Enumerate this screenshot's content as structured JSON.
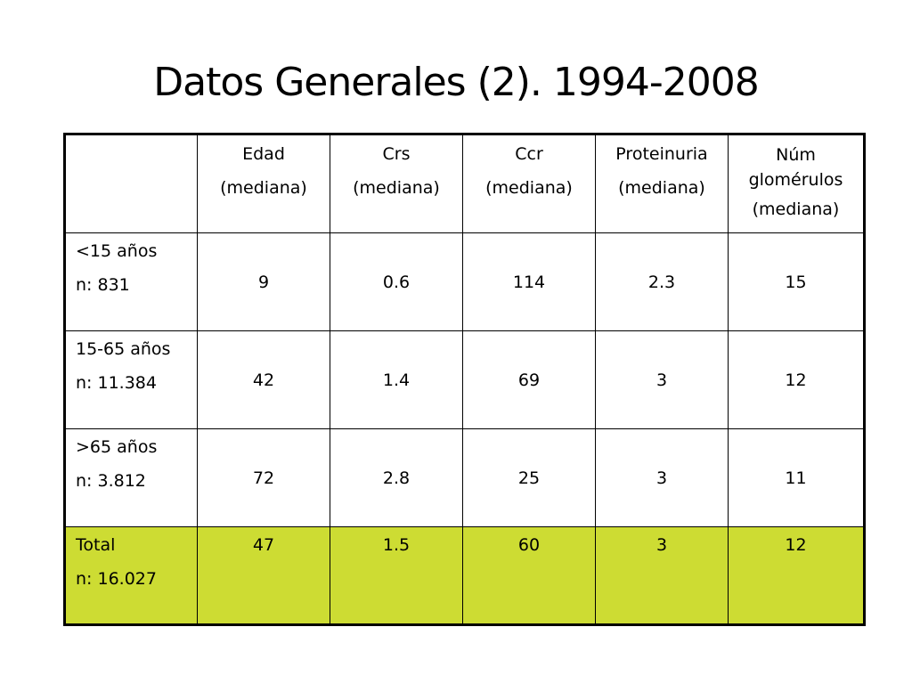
{
  "slide": {
    "title": "Datos Generales (2). 1994-2008"
  },
  "table": {
    "headers": [
      {
        "lines": [
          ""
        ]
      },
      {
        "lines": [
          "Edad",
          "(mediana)"
        ]
      },
      {
        "lines": [
          "Crs",
          "(mediana)"
        ]
      },
      {
        "lines": [
          "Ccr",
          "(mediana)"
        ]
      },
      {
        "lines": [
          "Proteinuria",
          "(mediana)"
        ]
      },
      {
        "lines": [
          "Núm",
          "glomérulos",
          "(mediana)"
        ]
      }
    ],
    "rows": [
      {
        "label": "<15 años",
        "n": "n: 831",
        "values": [
          "9",
          "0.6",
          "114",
          "2.3",
          "15"
        ]
      },
      {
        "label": "15-65 años",
        "n": "n: 11.384",
        "values": [
          "42",
          "1.4",
          "69",
          "3",
          "12"
        ]
      },
      {
        "label": ">65 años",
        "n": "n: 3.812",
        "values": [
          "72",
          "2.8",
          "25",
          "3",
          "11"
        ]
      },
      {
        "label": "Total",
        "n": "n: 16.027",
        "values": [
          "47",
          "1.5",
          "60",
          "3",
          "12"
        ]
      }
    ],
    "total_row_color": "#cddc33"
  }
}
